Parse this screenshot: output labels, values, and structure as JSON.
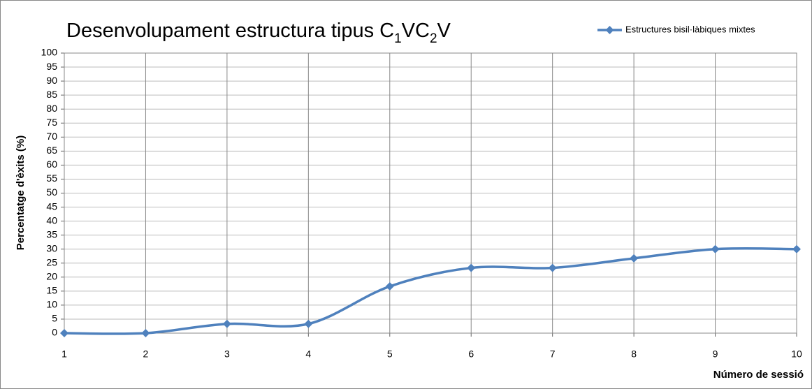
{
  "chart_data": {
    "type": "line",
    "title": [
      "Desenvolupament estructura tipus C",
      "1",
      "VC",
      "2",
      "V"
    ],
    "xlabel": "Número de sessió",
    "ylabel": "Percentatge d'èxits (%)",
    "x": [
      1,
      2,
      3,
      4,
      5,
      6,
      7,
      8,
      9,
      10
    ],
    "series": [
      {
        "name": "Estructures bisil·làbiques mixtes",
        "color": "#4f81bd",
        "values": [
          0,
          0,
          3.3,
          3.3,
          16.7,
          23.3,
          23.3,
          26.7,
          30,
          30
        ]
      }
    ],
    "xlim": [
      1,
      10
    ],
    "xticks": [
      1,
      2,
      3,
      4,
      5,
      6,
      7,
      8,
      9,
      10
    ],
    "ylim": [
      0,
      100
    ],
    "yticks": [
      0,
      5,
      10,
      15,
      20,
      25,
      30,
      35,
      40,
      45,
      50,
      55,
      60,
      65,
      70,
      75,
      80,
      85,
      90,
      95,
      100
    ],
    "grid": true,
    "legend": "top-right",
    "smooth": true
  }
}
